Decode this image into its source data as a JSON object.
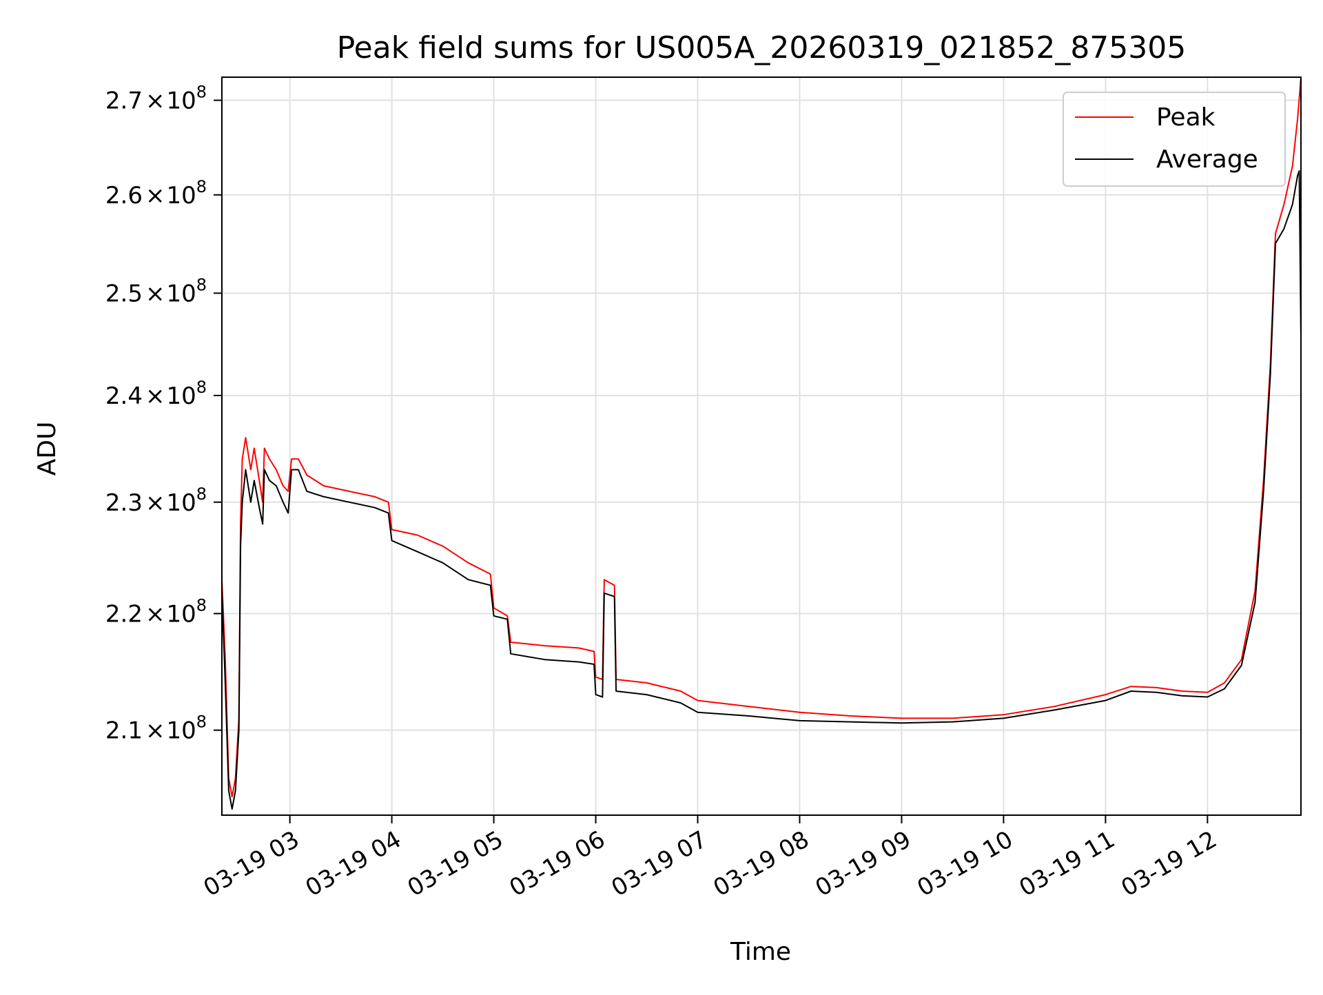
{
  "chart_data": {
    "type": "line",
    "title": "Peak field sums for US005A_20260319_021852_875305",
    "xlabel": "Time",
    "ylabel": "ADU",
    "y_scale": "log",
    "xlim": [
      "2026-03-19 02:20",
      "2026-03-19 12:55"
    ],
    "ylim": [
      203000000,
      272500000
    ],
    "grid": true,
    "legend_position": "top-right",
    "x_ticks": [
      {
        "value": "2026-03-19 03:00",
        "label": "03-19 03"
      },
      {
        "value": "2026-03-19 04:00",
        "label": "03-19 04"
      },
      {
        "value": "2026-03-19 05:00",
        "label": "03-19 05"
      },
      {
        "value": "2026-03-19 06:00",
        "label": "03-19 06"
      },
      {
        "value": "2026-03-19 07:00",
        "label": "03-19 07"
      },
      {
        "value": "2026-03-19 08:00",
        "label": "03-19 08"
      },
      {
        "value": "2026-03-19 09:00",
        "label": "03-19 09"
      },
      {
        "value": "2026-03-19 10:00",
        "label": "03-19 10"
      },
      {
        "value": "2026-03-19 11:00",
        "label": "03-19 11"
      },
      {
        "value": "2026-03-19 12:00",
        "label": "03-19 12"
      }
    ],
    "y_ticks": [
      {
        "value": 210000000,
        "mantissa": "2.1",
        "times": "×",
        "base": "10",
        "exp": "8"
      },
      {
        "value": 220000000,
        "mantissa": "2.2",
        "times": "×",
        "base": "10",
        "exp": "8"
      },
      {
        "value": 230000000,
        "mantissa": "2.3",
        "times": "×",
        "base": "10",
        "exp": "8"
      },
      {
        "value": 240000000,
        "mantissa": "2.4",
        "times": "×",
        "base": "10",
        "exp": "8"
      },
      {
        "value": 250000000,
        "mantissa": "2.5",
        "times": "×",
        "base": "10",
        "exp": "8"
      },
      {
        "value": 260000000,
        "mantissa": "2.6",
        "times": "×",
        "base": "10",
        "exp": "8"
      },
      {
        "value": 270000000,
        "mantissa": "2.7",
        "times": "×",
        "base": "10",
        "exp": "8"
      }
    ],
    "series": [
      {
        "name": "Peak",
        "color": "#ff0000",
        "points": [
          [
            "2026-03-19 02:20",
            223000000
          ],
          [
            "2026-03-19 02:22",
            216000000
          ],
          [
            "2026-03-19 02:24",
            206000000
          ],
          [
            "2026-03-19 02:26",
            204500000
          ],
          [
            "2026-03-19 02:28",
            206000000
          ],
          [
            "2026-03-19 02:30",
            211000000
          ],
          [
            "2026-03-19 02:31",
            228000000
          ],
          [
            "2026-03-19 02:32",
            234000000
          ],
          [
            "2026-03-19 02:34",
            236000000
          ],
          [
            "2026-03-19 02:37",
            233000000
          ],
          [
            "2026-03-19 02:39",
            235000000
          ],
          [
            "2026-03-19 02:42",
            232000000
          ],
          [
            "2026-03-19 02:44",
            230000000
          ],
          [
            "2026-03-19 02:45",
            235000000
          ],
          [
            "2026-03-19 02:48",
            234000000
          ],
          [
            "2026-03-19 02:52",
            233000000
          ],
          [
            "2026-03-19 02:56",
            231500000
          ],
          [
            "2026-03-19 02:59",
            231000000
          ],
          [
            "2026-03-19 03:01",
            234000000
          ],
          [
            "2026-03-19 03:05",
            234000000
          ],
          [
            "2026-03-19 03:10",
            232500000
          ],
          [
            "2026-03-19 03:20",
            231500000
          ],
          [
            "2026-03-19 03:35",
            231000000
          ],
          [
            "2026-03-19 03:50",
            230500000
          ],
          [
            "2026-03-19 03:58",
            230000000
          ],
          [
            "2026-03-19 04:00",
            227500000
          ],
          [
            "2026-03-19 04:15",
            227000000
          ],
          [
            "2026-03-19 04:30",
            226000000
          ],
          [
            "2026-03-19 04:45",
            224500000
          ],
          [
            "2026-03-19 04:58",
            223500000
          ],
          [
            "2026-03-19 05:00",
            220500000
          ],
          [
            "2026-03-19 05:08",
            219800000
          ],
          [
            "2026-03-19 05:10",
            217500000
          ],
          [
            "2026-03-19 05:30",
            217200000
          ],
          [
            "2026-03-19 05:50",
            217000000
          ],
          [
            "2026-03-19 05:59",
            216700000
          ],
          [
            "2026-03-19 06:00",
            214500000
          ],
          [
            "2026-03-19 06:04",
            214300000
          ],
          [
            "2026-03-19 06:05",
            223000000
          ],
          [
            "2026-03-19 06:11",
            222500000
          ],
          [
            "2026-03-19 06:12",
            214300000
          ],
          [
            "2026-03-19 06:30",
            214000000
          ],
          [
            "2026-03-19 06:50",
            213300000
          ],
          [
            "2026-03-19 07:00",
            212500000
          ],
          [
            "2026-03-19 07:30",
            212000000
          ],
          [
            "2026-03-19 08:00",
            211500000
          ],
          [
            "2026-03-19 08:30",
            211200000
          ],
          [
            "2026-03-19 09:00",
            211000000
          ],
          [
            "2026-03-19 09:30",
            211000000
          ],
          [
            "2026-03-19 10:00",
            211300000
          ],
          [
            "2026-03-19 10:30",
            212000000
          ],
          [
            "2026-03-19 11:00",
            213000000
          ],
          [
            "2026-03-19 11:15",
            213700000
          ],
          [
            "2026-03-19 11:30",
            213600000
          ],
          [
            "2026-03-19 11:45",
            213300000
          ],
          [
            "2026-03-19 12:00",
            213200000
          ],
          [
            "2026-03-19 12:10",
            214000000
          ],
          [
            "2026-03-19 12:20",
            216000000
          ],
          [
            "2026-03-19 12:28",
            222000000
          ],
          [
            "2026-03-19 12:33",
            232000000
          ],
          [
            "2026-03-19 12:37",
            243000000
          ],
          [
            "2026-03-19 12:40",
            256000000
          ],
          [
            "2026-03-19 12:45",
            259000000
          ],
          [
            "2026-03-19 12:50",
            263000000
          ],
          [
            "2026-03-19 12:53",
            268000000
          ],
          [
            "2026-03-19 12:55",
            272500000
          ]
        ]
      },
      {
        "name": "Average",
        "color": "#000000",
        "points": [
          [
            "2026-03-19 02:20",
            222000000
          ],
          [
            "2026-03-19 02:22",
            214000000
          ],
          [
            "2026-03-19 02:24",
            205000000
          ],
          [
            "2026-03-19 02:26",
            203500000
          ],
          [
            "2026-03-19 02:28",
            205000000
          ],
          [
            "2026-03-19 02:30",
            210000000
          ],
          [
            "2026-03-19 02:31",
            226000000
          ],
          [
            "2026-03-19 02:32",
            230000000
          ],
          [
            "2026-03-19 02:34",
            233000000
          ],
          [
            "2026-03-19 02:37",
            230000000
          ],
          [
            "2026-03-19 02:39",
            232000000
          ],
          [
            "2026-03-19 02:42",
            229500000
          ],
          [
            "2026-03-19 02:44",
            228000000
          ],
          [
            "2026-03-19 02:45",
            233000000
          ],
          [
            "2026-03-19 02:48",
            232000000
          ],
          [
            "2026-03-19 02:52",
            231500000
          ],
          [
            "2026-03-19 02:56",
            230000000
          ],
          [
            "2026-03-19 02:59",
            229000000
          ],
          [
            "2026-03-19 03:01",
            233000000
          ],
          [
            "2026-03-19 03:05",
            233000000
          ],
          [
            "2026-03-19 03:10",
            231000000
          ],
          [
            "2026-03-19 03:20",
            230500000
          ],
          [
            "2026-03-19 03:35",
            230000000
          ],
          [
            "2026-03-19 03:50",
            229500000
          ],
          [
            "2026-03-19 03:58",
            229000000
          ],
          [
            "2026-03-19 04:00",
            226500000
          ],
          [
            "2026-03-19 04:15",
            225500000
          ],
          [
            "2026-03-19 04:30",
            224500000
          ],
          [
            "2026-03-19 04:45",
            223000000
          ],
          [
            "2026-03-19 04:58",
            222500000
          ],
          [
            "2026-03-19 05:00",
            219800000
          ],
          [
            "2026-03-19 05:08",
            219500000
          ],
          [
            "2026-03-19 05:10",
            216500000
          ],
          [
            "2026-03-19 05:30",
            216000000
          ],
          [
            "2026-03-19 05:50",
            215800000
          ],
          [
            "2026-03-19 05:59",
            215600000
          ],
          [
            "2026-03-19 06:00",
            213000000
          ],
          [
            "2026-03-19 06:04",
            212800000
          ],
          [
            "2026-03-19 06:05",
            221800000
          ],
          [
            "2026-03-19 06:11",
            221500000
          ],
          [
            "2026-03-19 06:12",
            213300000
          ],
          [
            "2026-03-19 06:30",
            213000000
          ],
          [
            "2026-03-19 06:50",
            212300000
          ],
          [
            "2026-03-19 07:00",
            211500000
          ],
          [
            "2026-03-19 07:30",
            211200000
          ],
          [
            "2026-03-19 08:00",
            210800000
          ],
          [
            "2026-03-19 08:30",
            210700000
          ],
          [
            "2026-03-19 09:00",
            210600000
          ],
          [
            "2026-03-19 09:30",
            210700000
          ],
          [
            "2026-03-19 10:00",
            211000000
          ],
          [
            "2026-03-19 10:30",
            211700000
          ],
          [
            "2026-03-19 11:00",
            212500000
          ],
          [
            "2026-03-19 11:15",
            213300000
          ],
          [
            "2026-03-19 11:30",
            213200000
          ],
          [
            "2026-03-19 11:45",
            212900000
          ],
          [
            "2026-03-19 12:00",
            212800000
          ],
          [
            "2026-03-19 12:10",
            213500000
          ],
          [
            "2026-03-19 12:20",
            215500000
          ],
          [
            "2026-03-19 12:28",
            221000000
          ],
          [
            "2026-03-19 12:33",
            231000000
          ],
          [
            "2026-03-19 12:37",
            242000000
          ],
          [
            "2026-03-19 12:40",
            255000000
          ],
          [
            "2026-03-19 12:45",
            256500000
          ],
          [
            "2026-03-19 12:50",
            259000000
          ],
          [
            "2026-03-19 12:53",
            262000000
          ],
          [
            "2026-03-19 12:54",
            262500000
          ],
          [
            "2026-03-19 12:55",
            245500000
          ]
        ]
      }
    ]
  }
}
